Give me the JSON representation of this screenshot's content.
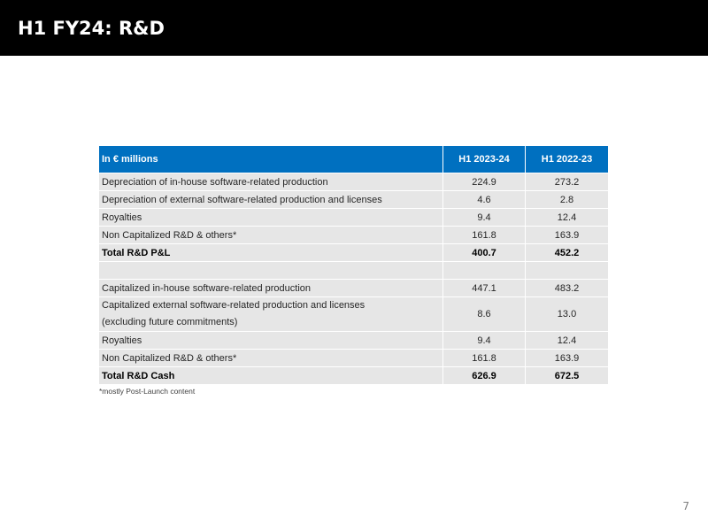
{
  "slide": {
    "title": "H1 FY24: R&D",
    "page_number": "7",
    "footnote": "*mostly Post-Launch content"
  },
  "table": {
    "header": {
      "label": "In € millions",
      "col1": "H1 2023-24",
      "col2": "H1 2022-23"
    },
    "pnl_rows": [
      {
        "label": "Depreciation of in-house software-related production",
        "v1": "224.9",
        "v2": "273.2"
      },
      {
        "label": "Depreciation of external software-related production and licenses",
        "v1": "4.6",
        "v2": "2.8"
      },
      {
        "label": "Royalties",
        "v1": "9.4",
        "v2": "12.4"
      },
      {
        "label": "Non Capitalized R&D & others*",
        "v1": "161.8",
        "v2": "163.9"
      }
    ],
    "pnl_total": {
      "label": "Total R&D P&L",
      "v1": "400.7",
      "v2": "452.2"
    },
    "cash_rows": [
      {
        "label": "Capitalized in-house software-related production",
        "v1": "447.1",
        "v2": "483.2"
      },
      {
        "label_line1": "Capitalized external software-related production and licenses",
        "label_line2": "(excluding future commitments)",
        "v1": "8.6",
        "v2": "13.0"
      },
      {
        "label": "Royalties",
        "v1": "9.4",
        "v2": "12.4"
      },
      {
        "label": "Non Capitalized R&D & others*",
        "v1": "161.8",
        "v2": "163.9"
      }
    ],
    "cash_total": {
      "label": "Total R&D Cash",
      "v1": "626.9",
      "v2": "672.5"
    }
  }
}
